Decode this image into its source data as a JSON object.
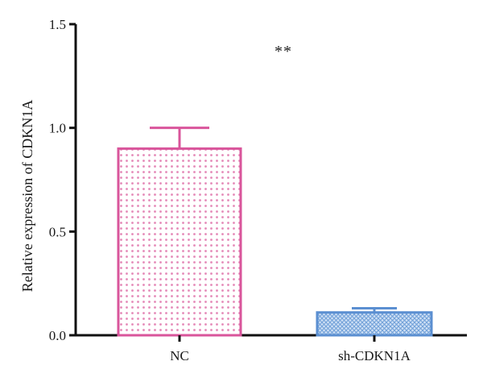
{
  "chart_data": {
    "type": "bar",
    "categories": [
      "NC",
      "sh-CDKN1A"
    ],
    "values": [
      0.9,
      0.11
    ],
    "error": [
      0.1,
      0.02
    ],
    "title": "",
    "xlabel": "",
    "ylabel": "Relative expression of CDKN1A",
    "ylim": [
      0,
      1.5
    ],
    "yticks": [
      0.0,
      0.5,
      1.0,
      1.5
    ],
    "ytick_labels": [
      "0.0",
      "0.5",
      "1.0",
      "1.5"
    ],
    "annotation": "**",
    "grid": false,
    "colors": [
      "#d9559b",
      "#5b8fd1"
    ],
    "fill_colors": [
      "#f7c6de",
      "#b9d0ee"
    ]
  }
}
